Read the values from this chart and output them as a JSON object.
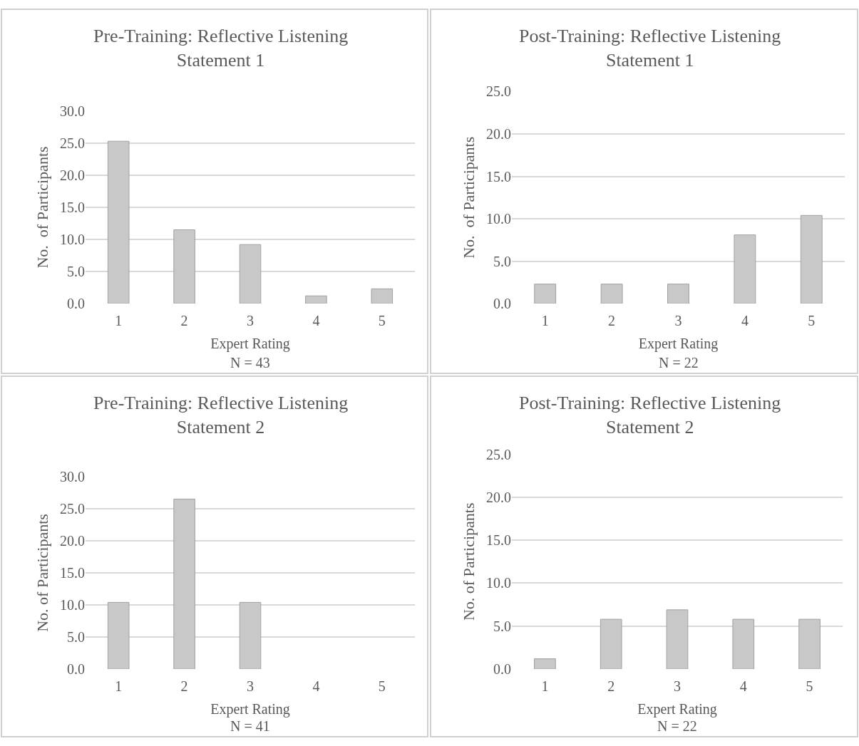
{
  "chart_data": [
    {
      "type": "bar",
      "title": "Pre-Training: Reflective Listening Statement 1",
      "xlabel": "Expert Rating",
      "ylabel": "No.  of Participants",
      "annotations": [
        "N = 43"
      ],
      "categories": [
        "1",
        "2",
        "3",
        "4",
        "5"
      ],
      "values": [
        25.3,
        11.5,
        9.2,
        1.2,
        2.3
      ],
      "color": "#c8c8c8",
      "ylim": [
        0,
        30
      ],
      "yticks": [
        {
          "value": 0,
          "label": "0.0"
        },
        {
          "value": 5,
          "label": "5.0"
        },
        {
          "value": 10,
          "label": "10.0"
        },
        {
          "value": 15,
          "label": "15.0"
        },
        {
          "value": 20,
          "label": "20.0"
        },
        {
          "value": 25,
          "label": "25.0"
        },
        {
          "value": 30,
          "label": "30.0"
        }
      ],
      "grid": "y",
      "legend": false
    },
    {
      "type": "bar",
      "title": "Post-Training: Reflective Listening Statement 1",
      "xlabel": "Expert Rating",
      "ylabel": "No.  of Participants",
      "annotations": [
        "N = 22"
      ],
      "categories": [
        "1",
        "2",
        "3",
        "4",
        "5"
      ],
      "values": [
        2.3,
        2.3,
        2.3,
        8.1,
        10.4
      ],
      "color": "#c8c8c8",
      "ylim": [
        0,
        25
      ],
      "yticks": [
        {
          "value": 0,
          "label": "0.0"
        },
        {
          "value": 5,
          "label": "5.0"
        },
        {
          "value": 10,
          "label": "10.0"
        },
        {
          "value": 15,
          "label": "15.0"
        },
        {
          "value": 20,
          "label": "20.0"
        },
        {
          "value": 25,
          "label": "25.0"
        }
      ],
      "grid": "y",
      "legend": false
    },
    {
      "type": "bar",
      "title": "Pre-Training: Reflective Listening Statement 2",
      "xlabel": "Expert Rating",
      "ylabel": "No. of Participants",
      "annotations": [
        "N = 41"
      ],
      "categories": [
        "1",
        "2",
        "3",
        "4",
        "5"
      ],
      "values": [
        10.4,
        26.5,
        10.4,
        0,
        0
      ],
      "color": "#c8c8c8",
      "ylim": [
        0,
        30
      ],
      "yticks": [
        {
          "value": 0,
          "label": "0.0"
        },
        {
          "value": 5,
          "label": "5.0"
        },
        {
          "value": 10,
          "label": "10.0"
        },
        {
          "value": 15,
          "label": "15.0"
        },
        {
          "value": 20,
          "label": "20.0"
        },
        {
          "value": 25,
          "label": "25.0"
        },
        {
          "value": 30,
          "label": "30.0"
        }
      ],
      "grid": "y",
      "legend": false
    },
    {
      "type": "bar",
      "title": "Post-Training: Reflective Listening Statement 2",
      "xlabel": "Expert Rating",
      "ylabel": "No. of Participants",
      "annotations": [
        "N = 22"
      ],
      "categories": [
        "1",
        "2",
        "3",
        "4",
        "5"
      ],
      "values": [
        1.2,
        5.8,
        6.9,
        5.8,
        5.8
      ],
      "color": "#c8c8c8",
      "ylim": [
        0,
        25
      ],
      "yticks": [
        {
          "value": 0,
          "label": "0.0"
        },
        {
          "value": 5,
          "label": "5.0"
        },
        {
          "value": 10,
          "label": "10.0"
        },
        {
          "value": 15,
          "label": "15.0"
        },
        {
          "value": 20,
          "label": "20.0"
        },
        {
          "value": 25,
          "label": "25.0"
        }
      ],
      "grid": "y",
      "legend": false
    }
  ]
}
